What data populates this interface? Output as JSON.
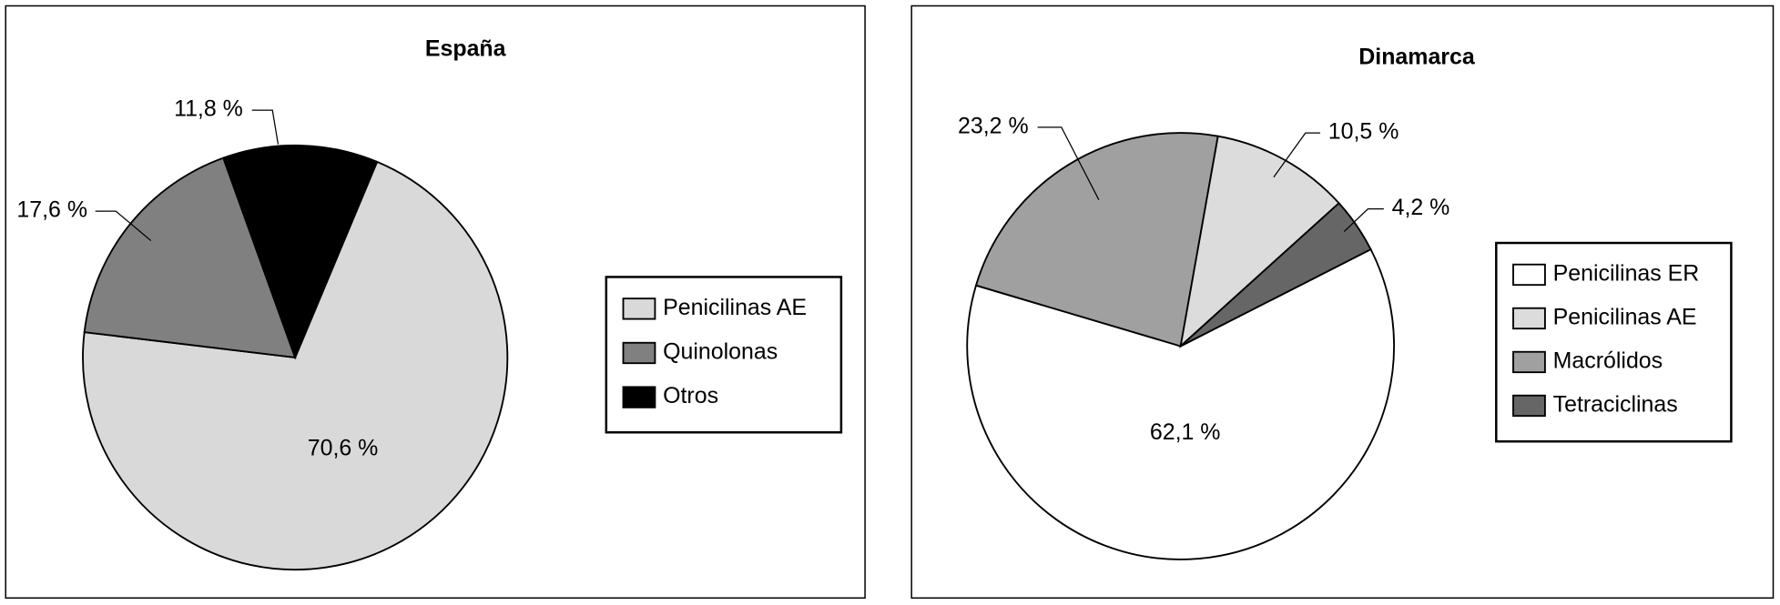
{
  "chart_data": [
    {
      "type": "pie",
      "title": "España",
      "categories": [
        "Penicilinas AE",
        "Quinolonas",
        "Otros"
      ],
      "values": [
        70.6,
        17.6,
        11.8
      ],
      "value_labels": [
        "70,6 %",
        "17,6 %",
        "11,8 %"
      ],
      "colors": [
        "#d9d9d9",
        "#808080",
        "#000000"
      ]
    },
    {
      "type": "pie",
      "title": "Dinamarca",
      "categories": [
        "Penicilinas ER",
        "Penicilinas AE",
        "Macrólidos",
        "Tetraciclinas"
      ],
      "values": [
        62.1,
        10.5,
        23.2,
        4.2
      ],
      "value_labels": [
        "62,1 %",
        "10,5 %",
        "23,2 %",
        "4,2 %"
      ],
      "colors": [
        "#ffffff",
        "#dcdcdc",
        "#a0a0a0",
        "#666666"
      ]
    }
  ]
}
